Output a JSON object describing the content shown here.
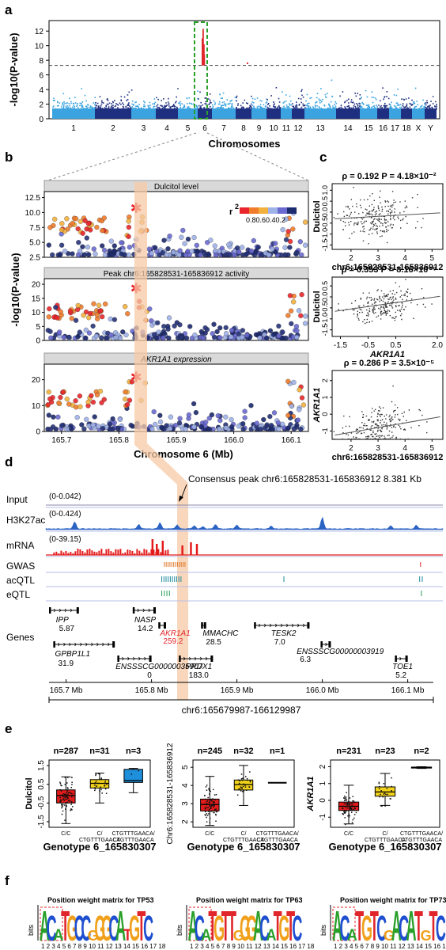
{
  "panels": {
    "a": "a",
    "b": "b",
    "c": "c",
    "d": "d",
    "e": "e",
    "f": "f"
  },
  "panel_a": {
    "ylabel": "-log10(P-value)",
    "yticks": [
      "0",
      "2",
      "4",
      "6",
      "8",
      "10",
      "12"
    ],
    "xlabel": "Chromosomes",
    "chromosomes": [
      "1",
      "2",
      "3",
      "4",
      "5",
      "6",
      "7",
      "8",
      "9",
      "10",
      "11",
      "12",
      "13",
      "14",
      "15",
      "16",
      "17",
      "18",
      "X",
      "Y"
    ],
    "threshold": 7.3
  },
  "panel_b": {
    "ylabel": "-log10(P-value)",
    "xlabel": "Chromosome 6 (Mb)",
    "xticks": [
      "165.7",
      "165.8",
      "165.9",
      "166.0",
      "166.1"
    ],
    "r2_label": "r",
    "r2_sup": "2",
    "r2_ticks": "0.80.60.40.2",
    "subplots": [
      {
        "title": "Dulcitol level",
        "yticks": [
          "2.5",
          "5.0",
          "7.5",
          "10.0",
          "12.5"
        ]
      },
      {
        "title": "Peak chr6:165828531-165836912 activity",
        "yticks": [
          "0",
          "5",
          "10",
          "15",
          "20"
        ]
      },
      {
        "title": "AKR1A1 expression",
        "yticks": [
          "0",
          "10",
          "20"
        ]
      }
    ]
  },
  "panel_c": {
    "plots": [
      {
        "stat": "ρ = 0.192  P = 4.18×10⁻²",
        "ylabel": "Dulcitol",
        "xlabel": "chr6:165828531-165836912",
        "xticks": [
          "2",
          "3",
          "4",
          "5"
        ],
        "yticks": [
          "1.0",
          "0.5",
          "0.0",
          "-0.5",
          "-1.0",
          "-1.5"
        ]
      },
      {
        "stat": "ρ = 0.353  P = 8.16×10⁻⁹",
        "ylabel": "Dulcitol",
        "xlabel": "AKR1A1",
        "xticks": [
          "-1.5",
          "-0.5",
          "0.5",
          "2.0"
        ],
        "yticks": [
          "0.5",
          "0.0",
          "-0.5",
          "-1.0",
          "-1.5"
        ]
      },
      {
        "stat": "ρ = 0.286  P = 3.5×10⁻⁵",
        "ylabel": "AKR1A1",
        "xlabel": "chr6:165828531-165836912",
        "xticks": [
          "2",
          "3",
          "4",
          "5"
        ],
        "yticks": [
          "2",
          "1",
          "0",
          "-1"
        ]
      }
    ]
  },
  "panel_d": {
    "consensus_label": "Consensus peak chr6:165828531-165836912 8.381 Kb",
    "tracks": [
      {
        "name": "Input",
        "range": "(0-0.042)"
      },
      {
        "name": "H3K27ac",
        "range": "(0-0.424)"
      },
      {
        "name": "mRNA",
        "range": "(0-39.15)"
      },
      {
        "name": "GWAS",
        "range": ""
      },
      {
        "name": "acQTL",
        "range": ""
      },
      {
        "name": "eQTL",
        "range": ""
      },
      {
        "name": "Genes",
        "range": ""
      }
    ],
    "genes": [
      {
        "name": "IPP",
        "value": "5.87"
      },
      {
        "name": "NASP",
        "value": "14.2"
      },
      {
        "name": "AKR1A1",
        "value": "259.2"
      },
      {
        "name": "MMACHC",
        "value": "28.5"
      },
      {
        "name": "TESK2",
        "value": "7.0"
      },
      {
        "name": "ENSSSCG00000003919",
        "value": "6.3"
      },
      {
        "name": "GPBP1L1",
        "value": "31.9"
      },
      {
        "name": "ENSSSCG00000035907",
        "value": "0"
      },
      {
        "name": "PRDX1",
        "value": "183.0"
      },
      {
        "name": "TOE1",
        "value": "5.2"
      }
    ],
    "xticks": [
      "165.7 Mb",
      "165.8 Mb",
      "165.9 Mb",
      "166.0 Mb",
      "166.1 Mb"
    ],
    "region": "chr6:165679987-166129987"
  },
  "panel_e": {
    "xlabel": "Genotype 6_165830307",
    "plots": [
      {
        "ylabel": "Dulcitol",
        "ns": [
          "n=287",
          "n=31",
          "n=3"
        ],
        "yticks": [
          "1.5",
          "0.5",
          "-0.5",
          "-1.5"
        ]
      },
      {
        "ylabel": "Chr6:165828531-165836912",
        "ns": [
          "n=245",
          "n=32",
          "n=1"
        ],
        "yticks": [
          "5",
          "4",
          "3",
          "2"
        ]
      },
      {
        "ylabel": "AKR1A1",
        "ns": [
          "n=231",
          "n=23",
          "n=2"
        ],
        "yticks": [
          "2",
          "1",
          "0",
          "-1"
        ]
      }
    ],
    "genotypes": [
      {
        "l1": "C/C",
        "l2": ""
      },
      {
        "l1": "C/",
        "l2": "CTGTTTGAACA"
      },
      {
        "l1": "CTGTTTGAACA/",
        "l2": "CTGTTTGAACA"
      }
    ]
  },
  "panel_f": {
    "ylabel": "bits",
    "titles": [
      "Position weight matrix for TP53",
      "Position weight matrix for TP63",
      "Position weight matrix for TP73"
    ],
    "positions": "1 2 3 4 5 6 7 8 9 10 11 12 13 14 15 16 17 18",
    "motifs": [
      "ACATGCCGGGCATGTC",
      "ACATGTTGGGACATGTC",
      "ACATGTCGACATGTC"
    ]
  },
  "colors": {
    "chr_light": "#3aa3e0",
    "chr_dark": "#1f2f80",
    "threshold": "#444444",
    "highlight": "#2aa02a",
    "sig": "#e0262b",
    "peak_band": "#f7c9a6",
    "track_blue": "#2a63c4",
    "track_red": "#e31b1b",
    "box_red": "#e31b1b",
    "box_yellow": "#f2d21b",
    "box_blue": "#1e8fdb"
  }
}
